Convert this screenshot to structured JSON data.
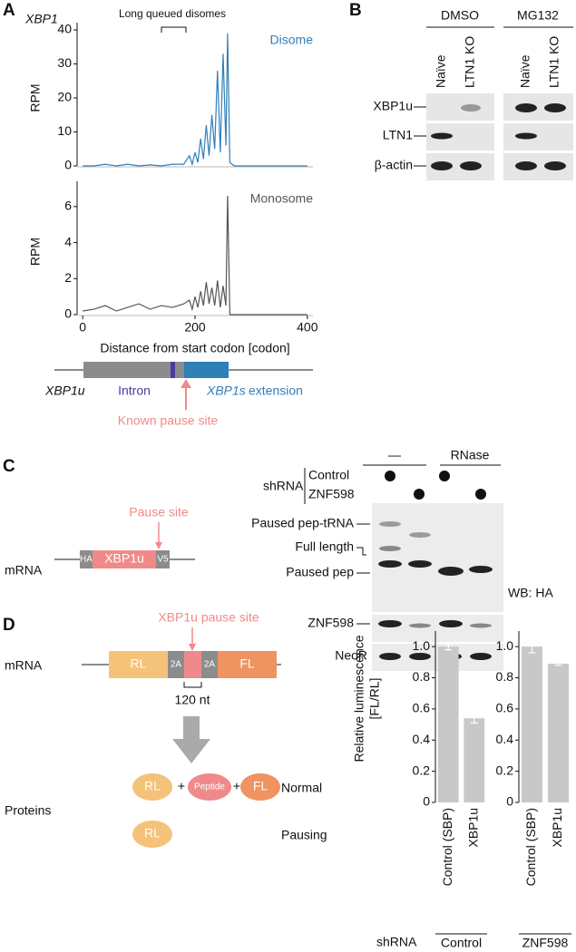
{
  "figure": {
    "panels": [
      "A",
      "B",
      "C",
      "D"
    ],
    "a": {
      "gene": "XBP1",
      "annotation": "Long queued disomes",
      "x_label": "Distance from start codon [codon]",
      "xbp1u": "XBP1u",
      "intron": "Intron",
      "xbp1s": "XBP1s",
      "extension": "extension",
      "pause": "Known pause site"
    },
    "b": {
      "groups": [
        "DMSO",
        "MG132"
      ],
      "lanes": [
        "Naïve",
        "LTN1 KO",
        "Naïve",
        "LTN1 KO"
      ],
      "rows": [
        "XBP1u",
        "LTN1",
        "β-actin"
      ]
    },
    "c": {
      "treatments": [
        "—",
        "RNase"
      ],
      "shrna": "shRNA",
      "shrna_rows": [
        "Control",
        "ZNF598"
      ],
      "bands": [
        "Paused pep-tRNA",
        "Full length",
        "Paused pep"
      ],
      "wb": "WB: HA",
      "blots": [
        "ZNF598",
        "NeoR"
      ],
      "mrna": "mRNA",
      "ha": "HA",
      "gene": "XBP1u",
      "v5": "V5",
      "pause": "Pause site"
    },
    "d": {
      "mrna": "mRNA",
      "pause": "XBP1u pause site",
      "parts": [
        "RL",
        "2A",
        "2A",
        "FL"
      ],
      "length": "120 nt",
      "proteins": "Proteins",
      "rl": "RL",
      "plus": "+",
      "peptide": "Peptide",
      "fl": "FL",
      "normal": "Normal",
      "pausing_rl": "RL",
      "pausing": "Pausing",
      "shrna": "shRNA"
    }
  },
  "chart_data": [
    {
      "type": "line",
      "y_label": "RPM",
      "x": [
        0,
        20,
        40,
        60,
        80,
        100,
        120,
        140,
        160,
        180,
        190,
        195,
        200,
        205,
        210,
        215,
        220,
        225,
        230,
        235,
        240,
        245,
        250,
        255,
        258,
        262,
        270,
        280,
        300,
        350,
        400
      ],
      "series": [
        {
          "name": "Disome",
          "color": "#2f7fb8",
          "values": [
            0,
            0,
            0.5,
            0,
            0.5,
            0,
            0.3,
            0,
            0.5,
            0.5,
            3,
            0.5,
            4,
            1,
            8,
            2,
            12,
            3,
            15,
            5,
            28,
            4,
            33,
            6,
            39,
            1,
            0,
            0,
            0,
            0,
            0
          ]
        }
      ],
      "xlim": [
        -10,
        410
      ],
      "ylim": [
        0,
        40
      ],
      "yticks": [
        0,
        10,
        20,
        30,
        40
      ]
    },
    {
      "type": "line",
      "y_label": "RPM",
      "x": [
        0,
        20,
        40,
        60,
        80,
        100,
        120,
        140,
        160,
        180,
        190,
        195,
        200,
        205,
        210,
        215,
        220,
        225,
        230,
        235,
        240,
        245,
        250,
        255,
        258,
        262,
        270,
        280,
        300,
        350,
        400
      ],
      "series": [
        {
          "name": "Monosome",
          "color": "#555555",
          "values": [
            0.2,
            0.3,
            0.5,
            0.2,
            0.4,
            0.6,
            0.3,
            0.5,
            0.4,
            0.6,
            0.8,
            0.3,
            1.0,
            0.4,
            1.3,
            0.5,
            1.8,
            0.6,
            1.5,
            0.5,
            1.9,
            0.4,
            1.6,
            0.5,
            6.6,
            0,
            0,
            0,
            0,
            0,
            0
          ]
        }
      ],
      "xlim": [
        -10,
        410
      ],
      "ylim": [
        0,
        7
      ],
      "yticks": [
        0,
        2,
        4,
        6
      ],
      "xticks": [
        0,
        200,
        400
      ]
    },
    {
      "type": "bar",
      "y_label": [
        "Relative luminescence",
        "[FL/RL]"
      ],
      "group": "Control",
      "categories": [
        "Control (SBP)",
        "XBP1u"
      ],
      "values": [
        1.0,
        0.54
      ],
      "errors": [
        0.02,
        0.03
      ],
      "color": "#c8c8c8",
      "ylim": [
        0,
        1.1
      ],
      "yticks": [
        0,
        0.2,
        0.4,
        0.6,
        0.8,
        {
          "value": 1,
          "label": "1.0"
        }
      ]
    },
    {
      "type": "bar",
      "group": "ZNF598",
      "categories": [
        "Control (SBP)",
        "XBP1u"
      ],
      "values": [
        1.0,
        0.89
      ],
      "errors": [
        0.04,
        0.01
      ],
      "color": "#c8c8c8",
      "ylim": [
        0,
        1.1
      ],
      "yticks": [
        0,
        0.2,
        0.4,
        0.6,
        0.8,
        {
          "value": 1,
          "label": "1.0"
        }
      ]
    }
  ]
}
